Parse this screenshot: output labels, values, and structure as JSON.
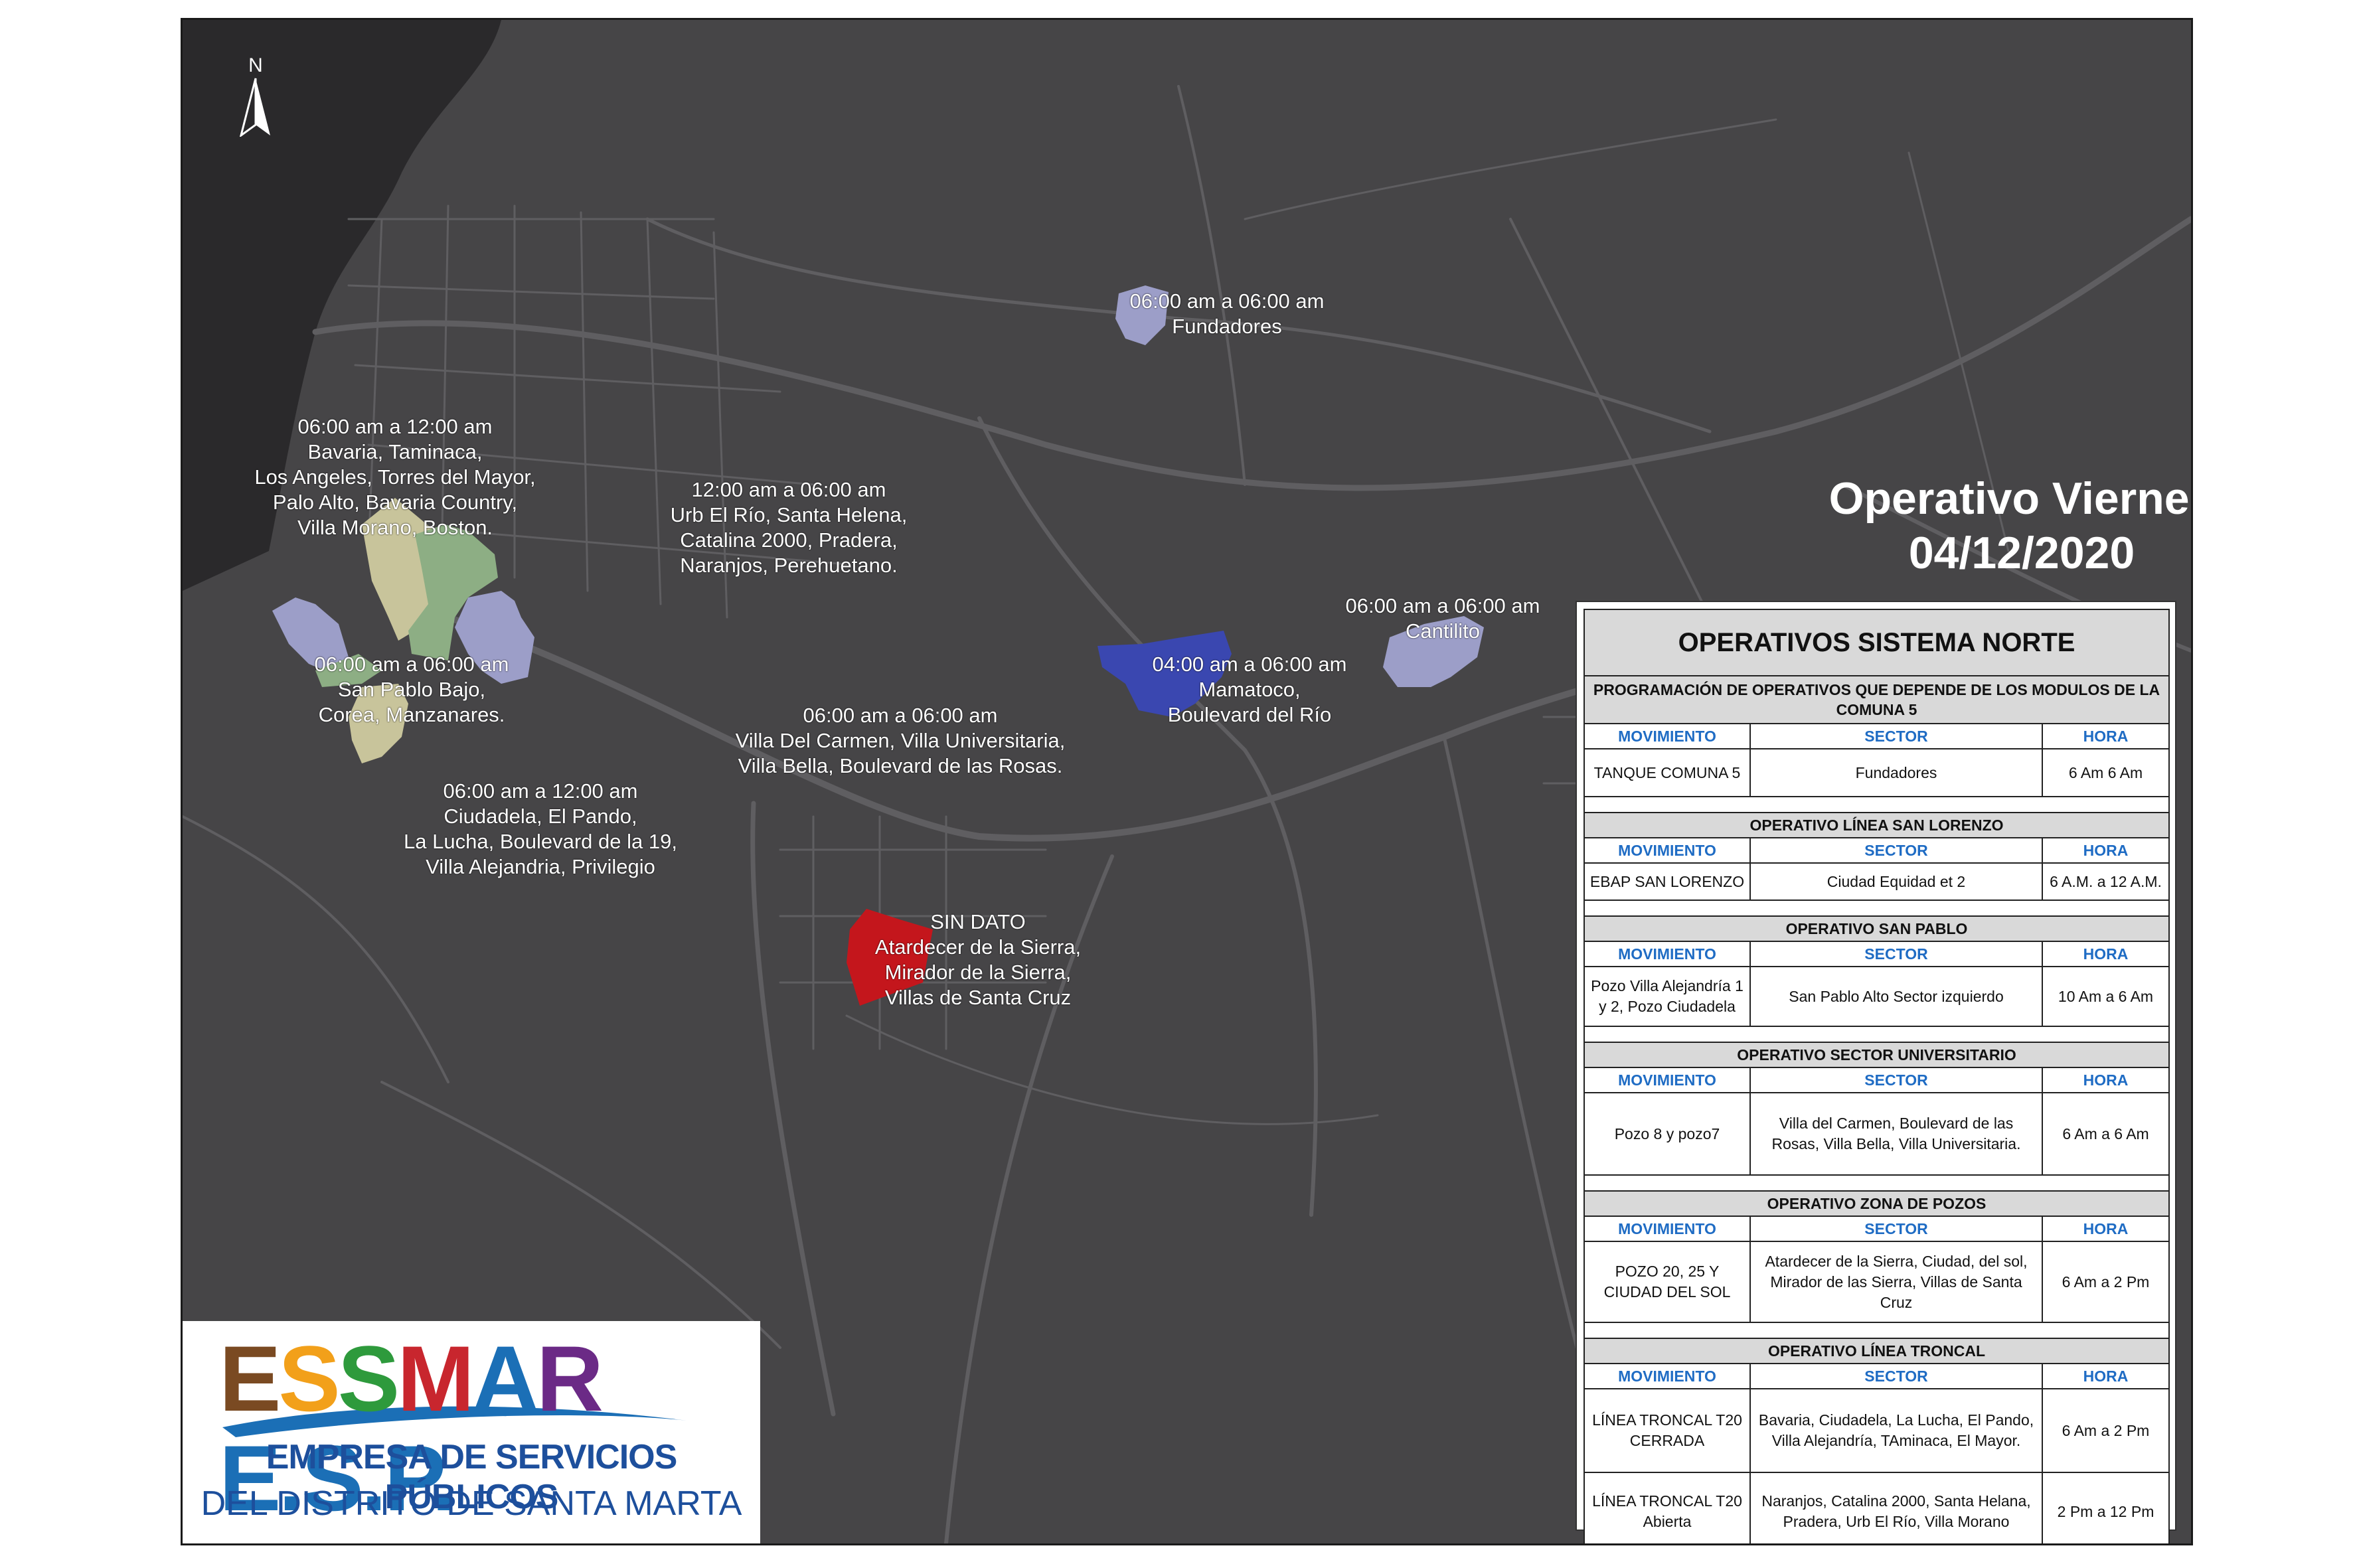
{
  "map": {
    "north_label": "N",
    "colors": {
      "background": "#464547",
      "sea": "#2a292b",
      "roads": "#5f5e61",
      "zone_khaki": "#c8c49b",
      "zone_green": "#8dae84",
      "zone_lavender": "#9c9ec8",
      "zone_blue": "#3a47b0",
      "zone_red": "#c4161c"
    },
    "zones": [
      {
        "id": "fundadores",
        "color": "lavender",
        "lines": [
          "06:00 am a 06:00 am",
          "Fundadores"
        ]
      },
      {
        "id": "bavaria",
        "color": "khaki",
        "lines": [
          "06:00 am a 12:00 am",
          "Bavaria, Taminaca,",
          "Los Angeles, Torres del Mayor,",
          "Palo Alto, Bavaria Country,",
          "Villa Morano, Boston."
        ]
      },
      {
        "id": "urb-el-rio",
        "color": "green",
        "lines": [
          "12:00 am a 06:00 am",
          "Urb El Río, Santa Helena,",
          "Catalina 2000, Pradera,",
          "Naranjos, Perehuetano."
        ]
      },
      {
        "id": "san-pablo",
        "color": "lavender",
        "lines": [
          "06:00 am a 06:00 am",
          "San Pablo Bajo,",
          "Corea, Manzanares."
        ]
      },
      {
        "id": "villa-del-carmen",
        "color": "lavender",
        "lines": [
          "06:00 am a 06:00 am",
          "Villa Del Carmen, Villa Universitaria,",
          "Villa Bella, Boulevard de las Rosas."
        ]
      },
      {
        "id": "ciudadela",
        "color": "khaki",
        "lines": [
          "06:00 am a 12:00 am",
          "Ciudadela, El Pando,",
          "La Lucha, Boulevard de la 19,",
          "Villa Alejandria, Privilegio"
        ]
      },
      {
        "id": "mamatoco",
        "color": "blue",
        "lines": [
          "04:00 am a 06:00 am",
          "Mamatoco,",
          "Boulevard del Río"
        ]
      },
      {
        "id": "cantilito",
        "color": "lavender",
        "lines": [
          "06:00 am a 06:00 am",
          "Cantilito"
        ]
      },
      {
        "id": "sin-dato",
        "color": "red",
        "lines": [
          "SIN DATO",
          "Atardecer de la Sierra,",
          "Mirador de la Sierra,",
          "Villas de Santa Cruz"
        ]
      }
    ]
  },
  "title": {
    "line1": "Operativo Viernes",
    "line2": "04/12/2020"
  },
  "operativos": {
    "title": "OPERATIVOS SISTEMA NORTE",
    "subtitle": "PROGRAMACIÓN DE OPERATIVOS QUE DEPENDE DE LOS MODULOS DE LA COMUNA 5",
    "headers": [
      "MOVIMIENTO",
      "SECTOR",
      "HORA"
    ],
    "sections": [
      {
        "name": "",
        "rows": [
          [
            "TANQUE COMUNA 5",
            "Fundadores",
            "6 Am  6 Am"
          ]
        ]
      },
      {
        "name": "OPERATIVO LÍNEA SAN LORENZO",
        "rows": [
          [
            "EBAP SAN LORENZO",
            "Ciudad Equidad et 2",
            "6 A.M. a 12 A.M."
          ]
        ]
      },
      {
        "name": "OPERATIVO SAN PABLO",
        "rows": [
          [
            "Pozo Villa Alejandría 1 y 2, Pozo Ciudadela",
            "San Pablo Alto Sector izquierdo",
            "10 Am a 6 Am"
          ]
        ]
      },
      {
        "name": "OPERATIVO SECTOR UNIVERSITARIO",
        "rows": [
          [
            "Pozo 8 y pozo7",
            "Villa del Carmen, Boulevard de las Rosas, Villa Bella, Villa Universitaria.",
            "6 Am a 6 Am"
          ]
        ]
      },
      {
        "name": "OPERATIVO ZONA DE POZOS",
        "rows": [
          [
            "POZO 20, 25 Y CIUDAD DEL SOL",
            "Atardecer de la Sierra, Ciudad, del sol, Mirador de las Sierra, Villas de Santa Cruz",
            "6 Am a 2 Pm"
          ]
        ]
      },
      {
        "name": "OPERATIVO LÍNEA TRONCAL",
        "rows": [
          [
            "LÍNEA TRONCAL T20 CERRADA",
            "Bavaria, Ciudadela, La Lucha, El Pando, Villa Alejandría, TAminaca,  El Mayor.",
            "6 Am a 2 Pm"
          ],
          [
            "LÍNEA TRONCAL T20 Abierta",
            "Naranjos, Catalina 2000, Santa Helana, Pradera, Urb El Río, Villa Morano",
            "2 Pm a 12 Pm"
          ]
        ]
      }
    ]
  },
  "logo": {
    "brand": "ESSMAR E.S.P.",
    "line1": "EMPRESA DE SERVICIOS PÚBLICOS",
    "line2": "DEL DISTRITO DE SANTA MARTA",
    "colors": {
      "e": "#7a4a22",
      "s1": "#f2a01a",
      "s2": "#2e9a3c",
      "m": "#c8262e",
      "a": "#1b6fb6",
      "r": "#6b2a86",
      "esp": "#1b6fb6",
      "text": "#1d4f9c"
    }
  }
}
